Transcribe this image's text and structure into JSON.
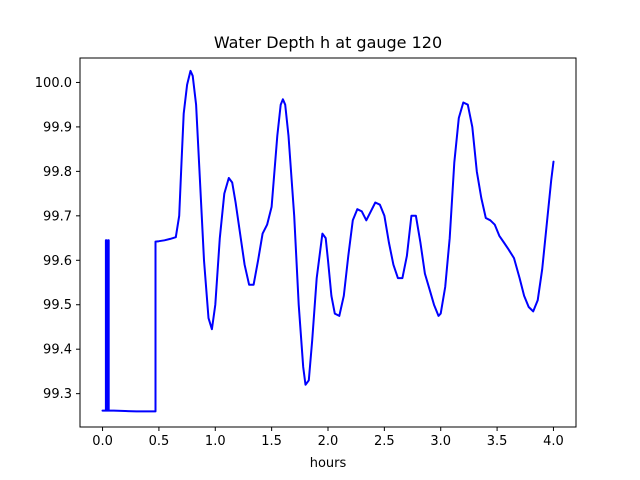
{
  "chart_data": {
    "type": "line",
    "title": "Water Depth h at gauge 120",
    "xlabel": "hours",
    "ylabel": "",
    "xlim": [
      -0.2,
      4.2
    ],
    "ylim": [
      99.225,
      100.055
    ],
    "xticks": [
      0.0,
      0.5,
      1.0,
      1.5,
      2.0,
      2.5,
      3.0,
      3.5,
      4.0
    ],
    "xtick_labels": [
      "0.0",
      "0.5",
      "1.0",
      "1.5",
      "2.0",
      "2.5",
      "3.0",
      "3.5",
      "4.0"
    ],
    "yticks": [
      99.3,
      99.4,
      99.5,
      99.6,
      99.7,
      99.8,
      99.9,
      100.0
    ],
    "ytick_labels": [
      "99.3",
      "99.4",
      "99.5",
      "99.6",
      "99.7",
      "99.8",
      "99.9",
      "100.0"
    ],
    "grid": false,
    "series": [
      {
        "color": "#0000ff",
        "x": [
          0.0,
          0.03,
          0.03,
          0.035,
          0.035,
          0.05,
          0.05,
          0.055,
          0.055,
          0.1,
          0.2,
          0.3,
          0.4,
          0.47,
          0.47,
          0.5,
          0.55,
          0.6,
          0.65,
          0.68,
          0.7,
          0.72,
          0.75,
          0.78,
          0.8,
          0.83,
          0.86,
          0.9,
          0.94,
          0.97,
          1.0,
          1.04,
          1.08,
          1.12,
          1.15,
          1.18,
          1.22,
          1.26,
          1.3,
          1.34,
          1.38,
          1.42,
          1.46,
          1.5,
          1.55,
          1.58,
          1.6,
          1.62,
          1.65,
          1.7,
          1.74,
          1.78,
          1.8,
          1.83,
          1.86,
          1.9,
          1.95,
          1.98,
          2.0,
          2.03,
          2.06,
          2.1,
          2.14,
          2.18,
          2.22,
          2.26,
          2.3,
          2.34,
          2.38,
          2.42,
          2.46,
          2.5,
          2.54,
          2.58,
          2.62,
          2.66,
          2.7,
          2.74,
          2.78,
          2.82,
          2.86,
          2.9,
          2.94,
          2.98,
          3.0,
          3.04,
          3.08,
          3.12,
          3.16,
          3.2,
          3.24,
          3.28,
          3.32,
          3.36,
          3.4,
          3.44,
          3.48,
          3.52,
          3.56,
          3.6,
          3.65,
          3.7,
          3.74,
          3.78,
          3.82,
          3.86,
          3.9,
          3.94,
          3.98,
          4.0
        ],
        "y": [
          99.262,
          99.262,
          99.645,
          99.645,
          99.262,
          99.262,
          99.645,
          99.645,
          99.262,
          99.262,
          99.261,
          99.26,
          99.26,
          99.26,
          99.642,
          99.643,
          99.645,
          99.648,
          99.652,
          99.7,
          99.82,
          99.93,
          99.995,
          100.026,
          100.015,
          99.95,
          99.8,
          99.6,
          99.47,
          99.445,
          99.5,
          99.65,
          99.75,
          99.785,
          99.775,
          99.73,
          99.66,
          99.59,
          99.545,
          99.545,
          99.6,
          99.66,
          99.68,
          99.72,
          99.88,
          99.95,
          99.962,
          99.95,
          99.88,
          99.7,
          99.5,
          99.36,
          99.32,
          99.33,
          99.42,
          99.56,
          99.66,
          99.65,
          99.6,
          99.52,
          99.48,
          99.475,
          99.52,
          99.61,
          99.69,
          99.715,
          99.71,
          99.69,
          99.71,
          99.73,
          99.725,
          99.7,
          99.64,
          99.59,
          99.56,
          99.56,
          99.61,
          99.7,
          99.7,
          99.64,
          99.57,
          99.535,
          99.5,
          99.475,
          99.48,
          99.54,
          99.65,
          99.82,
          99.92,
          99.955,
          99.95,
          99.9,
          99.8,
          99.74,
          99.695,
          99.69,
          99.68,
          99.655,
          99.64,
          99.625,
          99.605,
          99.56,
          99.52,
          99.495,
          99.485,
          99.51,
          99.58,
          99.68,
          99.78,
          99.822
        ]
      }
    ]
  }
}
